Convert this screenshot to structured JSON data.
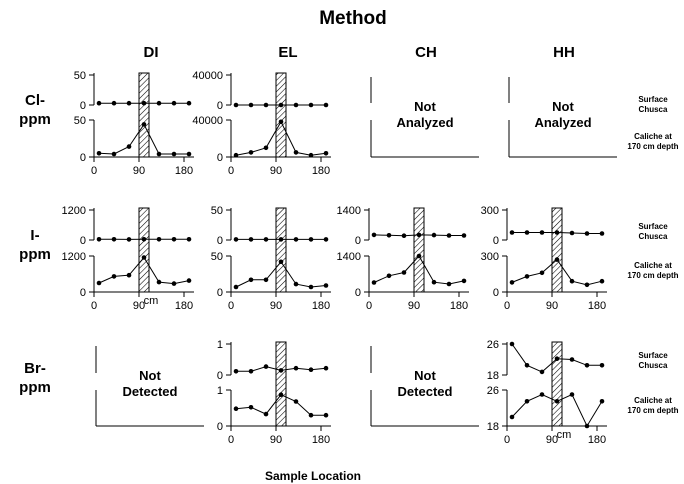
{
  "figure": {
    "title": "Method",
    "xlabel": "Sample Location",
    "methods": [
      "DI",
      "EL",
      "CH",
      "HH"
    ],
    "rows": [
      {
        "label_line1": "Cl-",
        "label_line2": "ppm"
      },
      {
        "label_line1": "I-",
        "label_line2": "ppm"
      },
      {
        "label_line1": "Br-",
        "label_line2": "ppm"
      }
    ],
    "layer_labels": {
      "surface_line1": "Surface",
      "surface_line2": "Chusca",
      "caliche_line1": "Caliche at",
      "caliche_line2": "170 cm depth"
    },
    "placeholders": {
      "not_analyzed_line1": "Not",
      "not_analyzed_line2": "Analyzed",
      "not_detected_line1": "Not",
      "not_detected_line2": "Detected"
    },
    "cm_label": "cm",
    "x_ticks": [
      "0",
      "90",
      "180"
    ]
  },
  "chart_data": [
    {
      "id": "cl-di",
      "type": "line",
      "row": "Cl-",
      "method": "DI",
      "x_range": [
        0,
        200
      ],
      "highlight_band": [
        90,
        110
      ],
      "surface": {
        "x": [
          10,
          40,
          70,
          100,
          130,
          160,
          190
        ],
        "y": [
          3,
          3,
          3,
          3,
          3,
          3,
          3
        ],
        "ylim": [
          0,
          50
        ],
        "ticks": [
          "50",
          "0"
        ]
      },
      "caliche": {
        "x": [
          10,
          40,
          70,
          100,
          130,
          160,
          190
        ],
        "y": [
          5,
          4,
          14,
          44,
          4,
          4,
          4
        ],
        "ylim": [
          0,
          50
        ],
        "ticks": [
          "50",
          "0"
        ]
      }
    },
    {
      "id": "cl-el",
      "type": "line",
      "row": "Cl-",
      "method": "EL",
      "x_range": [
        0,
        200
      ],
      "highlight_band": [
        90,
        110
      ],
      "surface": {
        "x": [
          10,
          40,
          70,
          100,
          130,
          160,
          190
        ],
        "y": [
          0,
          0,
          0,
          0,
          0,
          0,
          0
        ],
        "ylim": [
          0,
          40000
        ],
        "ticks": [
          "40000",
          "0"
        ]
      },
      "caliche": {
        "x": [
          10,
          40,
          70,
          100,
          130,
          160,
          190
        ],
        "y": [
          2000,
          5000,
          10000,
          38000,
          5000,
          2000,
          4000
        ],
        "ylim": [
          0,
          40000
        ],
        "ticks": [
          "40000",
          "0"
        ]
      }
    },
    {
      "id": "cl-ch",
      "type": "empty",
      "row": "Cl-",
      "method": "CH",
      "status": "Not Analyzed"
    },
    {
      "id": "cl-hh",
      "type": "empty",
      "row": "Cl-",
      "method": "HH",
      "status": "Not Analyzed"
    },
    {
      "id": "i-di",
      "type": "line",
      "row": "I-",
      "method": "DI",
      "x_range": [
        0,
        200
      ],
      "highlight_band": [
        90,
        110
      ],
      "surface": {
        "x": [
          10,
          40,
          70,
          100,
          130,
          160,
          190
        ],
        "y": [
          30,
          30,
          25,
          30,
          30,
          30,
          30
        ],
        "ylim": [
          0,
          1200
        ],
        "ticks": [
          "1200",
          "0"
        ]
      },
      "caliche": {
        "x": [
          10,
          40,
          70,
          100,
          130,
          160,
          190
        ],
        "y": [
          300,
          520,
          560,
          1150,
          330,
          280,
          380
        ],
        "ylim": [
          0,
          1200
        ],
        "ticks": [
          "1200",
          "0"
        ]
      }
    },
    {
      "id": "i-el",
      "type": "line",
      "row": "I-",
      "method": "EL",
      "x_range": [
        0,
        200
      ],
      "highlight_band": [
        90,
        110
      ],
      "surface": {
        "x": [
          10,
          40,
          70,
          100,
          130,
          160,
          190
        ],
        "y": [
          1,
          1,
          1,
          1,
          1,
          1,
          1
        ],
        "ylim": [
          0,
          50
        ],
        "ticks": [
          "50",
          "0"
        ]
      },
      "caliche": {
        "x": [
          10,
          40,
          70,
          100,
          130,
          160,
          190
        ],
        "y": [
          7,
          17,
          17,
          42,
          11,
          7,
          9
        ],
        "ylim": [
          0,
          50
        ],
        "ticks": [
          "50",
          "0"
        ]
      }
    },
    {
      "id": "i-ch",
      "type": "line",
      "row": "I-",
      "method": "CH",
      "x_range": [
        0,
        200
      ],
      "highlight_band": [
        90,
        110
      ],
      "surface": {
        "x": [
          10,
          40,
          70,
          100,
          130,
          160,
          190
        ],
        "y": [
          240,
          220,
          200,
          240,
          230,
          210,
          210
        ],
        "ylim": [
          0,
          1400
        ],
        "ticks": [
          "1400",
          "0"
        ]
      },
      "caliche": {
        "x": [
          10,
          40,
          70,
          100,
          130,
          160,
          190
        ],
        "y": [
          370,
          630,
          760,
          1400,
          380,
          310,
          430
        ],
        "ylim": [
          0,
          1400
        ],
        "ticks": [
          "1400",
          "0"
        ]
      }
    },
    {
      "id": "i-hh",
      "type": "line",
      "row": "I-",
      "method": "HH",
      "x_range": [
        0,
        200
      ],
      "highlight_band": [
        90,
        110
      ],
      "surface": {
        "x": [
          10,
          40,
          70,
          100,
          130,
          160,
          190
        ],
        "y": [
          75,
          75,
          75,
          75,
          70,
          65,
          65
        ],
        "ylim": [
          0,
          300
        ],
        "ticks": [
          "300",
          "0"
        ]
      },
      "caliche": {
        "x": [
          10,
          40,
          70,
          100,
          130,
          160,
          190
        ],
        "y": [
          80,
          130,
          160,
          270,
          90,
          60,
          90
        ],
        "ylim": [
          0,
          300
        ],
        "ticks": [
          "300",
          "0"
        ]
      }
    },
    {
      "id": "br-di",
      "type": "empty",
      "row": "Br-",
      "method": "DI",
      "status": "Not Detected"
    },
    {
      "id": "br-el",
      "type": "line",
      "row": "Br-",
      "method": "EL",
      "x_range": [
        0,
        200
      ],
      "highlight_band": [
        90,
        110
      ],
      "surface": {
        "x": [
          10,
          40,
          70,
          100,
          130,
          160,
          190
        ],
        "y": [
          0.12,
          0.12,
          0.27,
          0.15,
          0.22,
          0.17,
          0.22
        ],
        "ylim": [
          0,
          1
        ],
        "ticks": [
          "1",
          "0"
        ]
      },
      "caliche": {
        "x": [
          10,
          40,
          70,
          100,
          130,
          160,
          190
        ],
        "y": [
          0.48,
          0.52,
          0.33,
          0.87,
          0.68,
          0.3,
          0.3
        ],
        "ylim": [
          0,
          1
        ],
        "ticks": [
          "1",
          "0"
        ]
      }
    },
    {
      "id": "br-ch",
      "type": "empty",
      "row": "Br-",
      "method": "CH",
      "status": "Not Detected"
    },
    {
      "id": "br-hh",
      "type": "line",
      "row": "Br-",
      "method": "HH",
      "x_range": [
        0,
        200
      ],
      "highlight_band": [
        90,
        110
      ],
      "surface": {
        "x": [
          10,
          40,
          70,
          100,
          130,
          160,
          190
        ],
        "y": [
          26,
          20.5,
          18.8,
          22.2,
          22,
          20.5,
          20.5
        ],
        "ylim": [
          18,
          26
        ],
        "ticks": [
          "26",
          "18"
        ]
      },
      "caliche": {
        "x": [
          10,
          40,
          70,
          100,
          130,
          160,
          190
        ],
        "y": [
          20,
          23.5,
          25,
          23.5,
          25,
          18,
          23.5
        ],
        "ylim": [
          18,
          26
        ],
        "ticks": [
          "26",
          "18"
        ]
      }
    }
  ]
}
